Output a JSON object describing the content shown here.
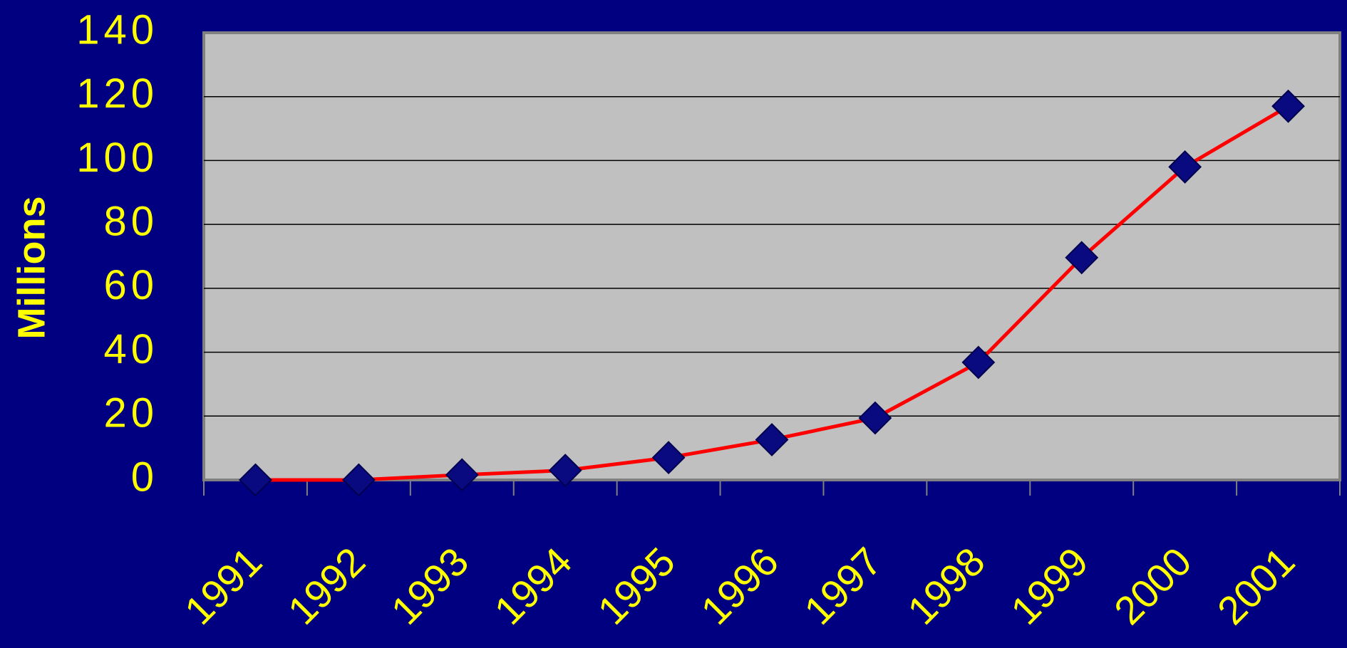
{
  "chart_data": {
    "type": "line",
    "y_label": "Millions",
    "categories": [
      "1991",
      "1992",
      "1993",
      "1994",
      "1995",
      "1996",
      "1997",
      "1998",
      "1999",
      "2000",
      "2001"
    ],
    "values": [
      0,
      0,
      1.6,
      3,
      7,
      12.6,
      19.4,
      36.8,
      69.6,
      98,
      117
    ],
    "color": "#ff0000",
    "marker_color": "#0a0a80",
    "ylim": [
      0,
      140
    ],
    "yticks": [
      0,
      20,
      40,
      60,
      80,
      100,
      120,
      140
    ],
    "grid": true
  }
}
